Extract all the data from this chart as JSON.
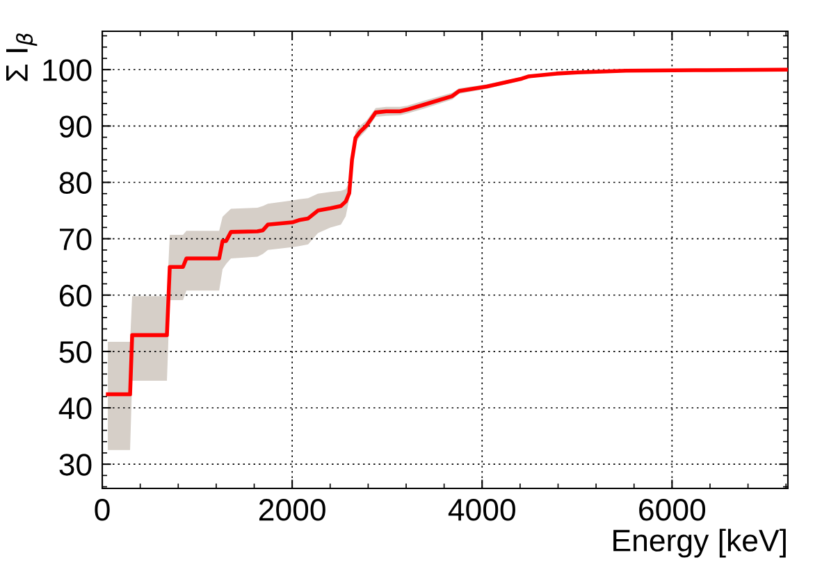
{
  "chart_data": {
    "type": "line",
    "xlabel": "Energy [keV]",
    "ylabel": "Σ I$_{β}$",
    "xlim": [
      0,
      7220
    ],
    "xticks": [
      0,
      2000,
      4000,
      6000
    ],
    "ylim": [
      25.7,
      106.8
    ],
    "yticks": [
      30,
      40,
      50,
      60,
      70,
      80,
      90,
      100
    ],
    "grid": true,
    "marker": "none",
    "line_style": "solid",
    "series": [
      {
        "color": "#ff0000",
        "x": [
          59,
          293,
          315,
          681,
          711,
          850,
          886,
          1231,
          1267,
          1304,
          1355,
          1634,
          1692,
          1744,
          2000,
          2073,
          2168,
          2271,
          2403,
          2513,
          2564,
          2601,
          2630,
          2667,
          2711,
          2784,
          2879,
          2989,
          3135,
          3209,
          3392,
          3685,
          3758,
          4051,
          4418,
          4491,
          4784,
          5004,
          5516,
          6249,
          7220
        ],
        "values": [
          42.4,
          42.4,
          52.9,
          52.9,
          65.0,
          65.0,
          66.5,
          66.5,
          69.6,
          69.6,
          71.2,
          71.3,
          71.5,
          72.5,
          72.9,
          73.3,
          73.6,
          75.0,
          75.4,
          75.8,
          76.6,
          78.1,
          84.0,
          87.9,
          88.9,
          90.1,
          92.4,
          92.6,
          92.6,
          92.9,
          93.8,
          95.3,
          96.2,
          97.0,
          98.4,
          98.8,
          99.3,
          99.5,
          99.8,
          99.9,
          100
        ],
        "lower": [
          32.5,
          32.5,
          44.8,
          44.8,
          59.1,
          59.1,
          60.8,
          60.8,
          64.6,
          65.5,
          66.5,
          66.8,
          67.3,
          68.0,
          68.5,
          68.7,
          69.0,
          71.0,
          72.0,
          72.5,
          74.0,
          77.0,
          83.0,
          87.0,
          88.0,
          89.3,
          91.6,
          91.8,
          91.9,
          92.2,
          93.1,
          94.7,
          95.7,
          96.6,
          98.1,
          98.5,
          99.1,
          99.3,
          99.6,
          99.85,
          100
        ],
        "upper": [
          51.7,
          51.7,
          59.8,
          59.8,
          70.7,
          70.7,
          71.4,
          71.4,
          73.9,
          74.5,
          75.3,
          75.5,
          75.8,
          76.2,
          76.8,
          77.0,
          77.2,
          78.0,
          78.3,
          78.5,
          78.8,
          80.0,
          85.0,
          89.0,
          90.0,
          91.0,
          93.2,
          93.4,
          93.4,
          93.6,
          94.5,
          95.9,
          96.7,
          97.4,
          98.7,
          99.1,
          99.5,
          99.7,
          99.9,
          99.95,
          100
        ]
      }
    ]
  }
}
